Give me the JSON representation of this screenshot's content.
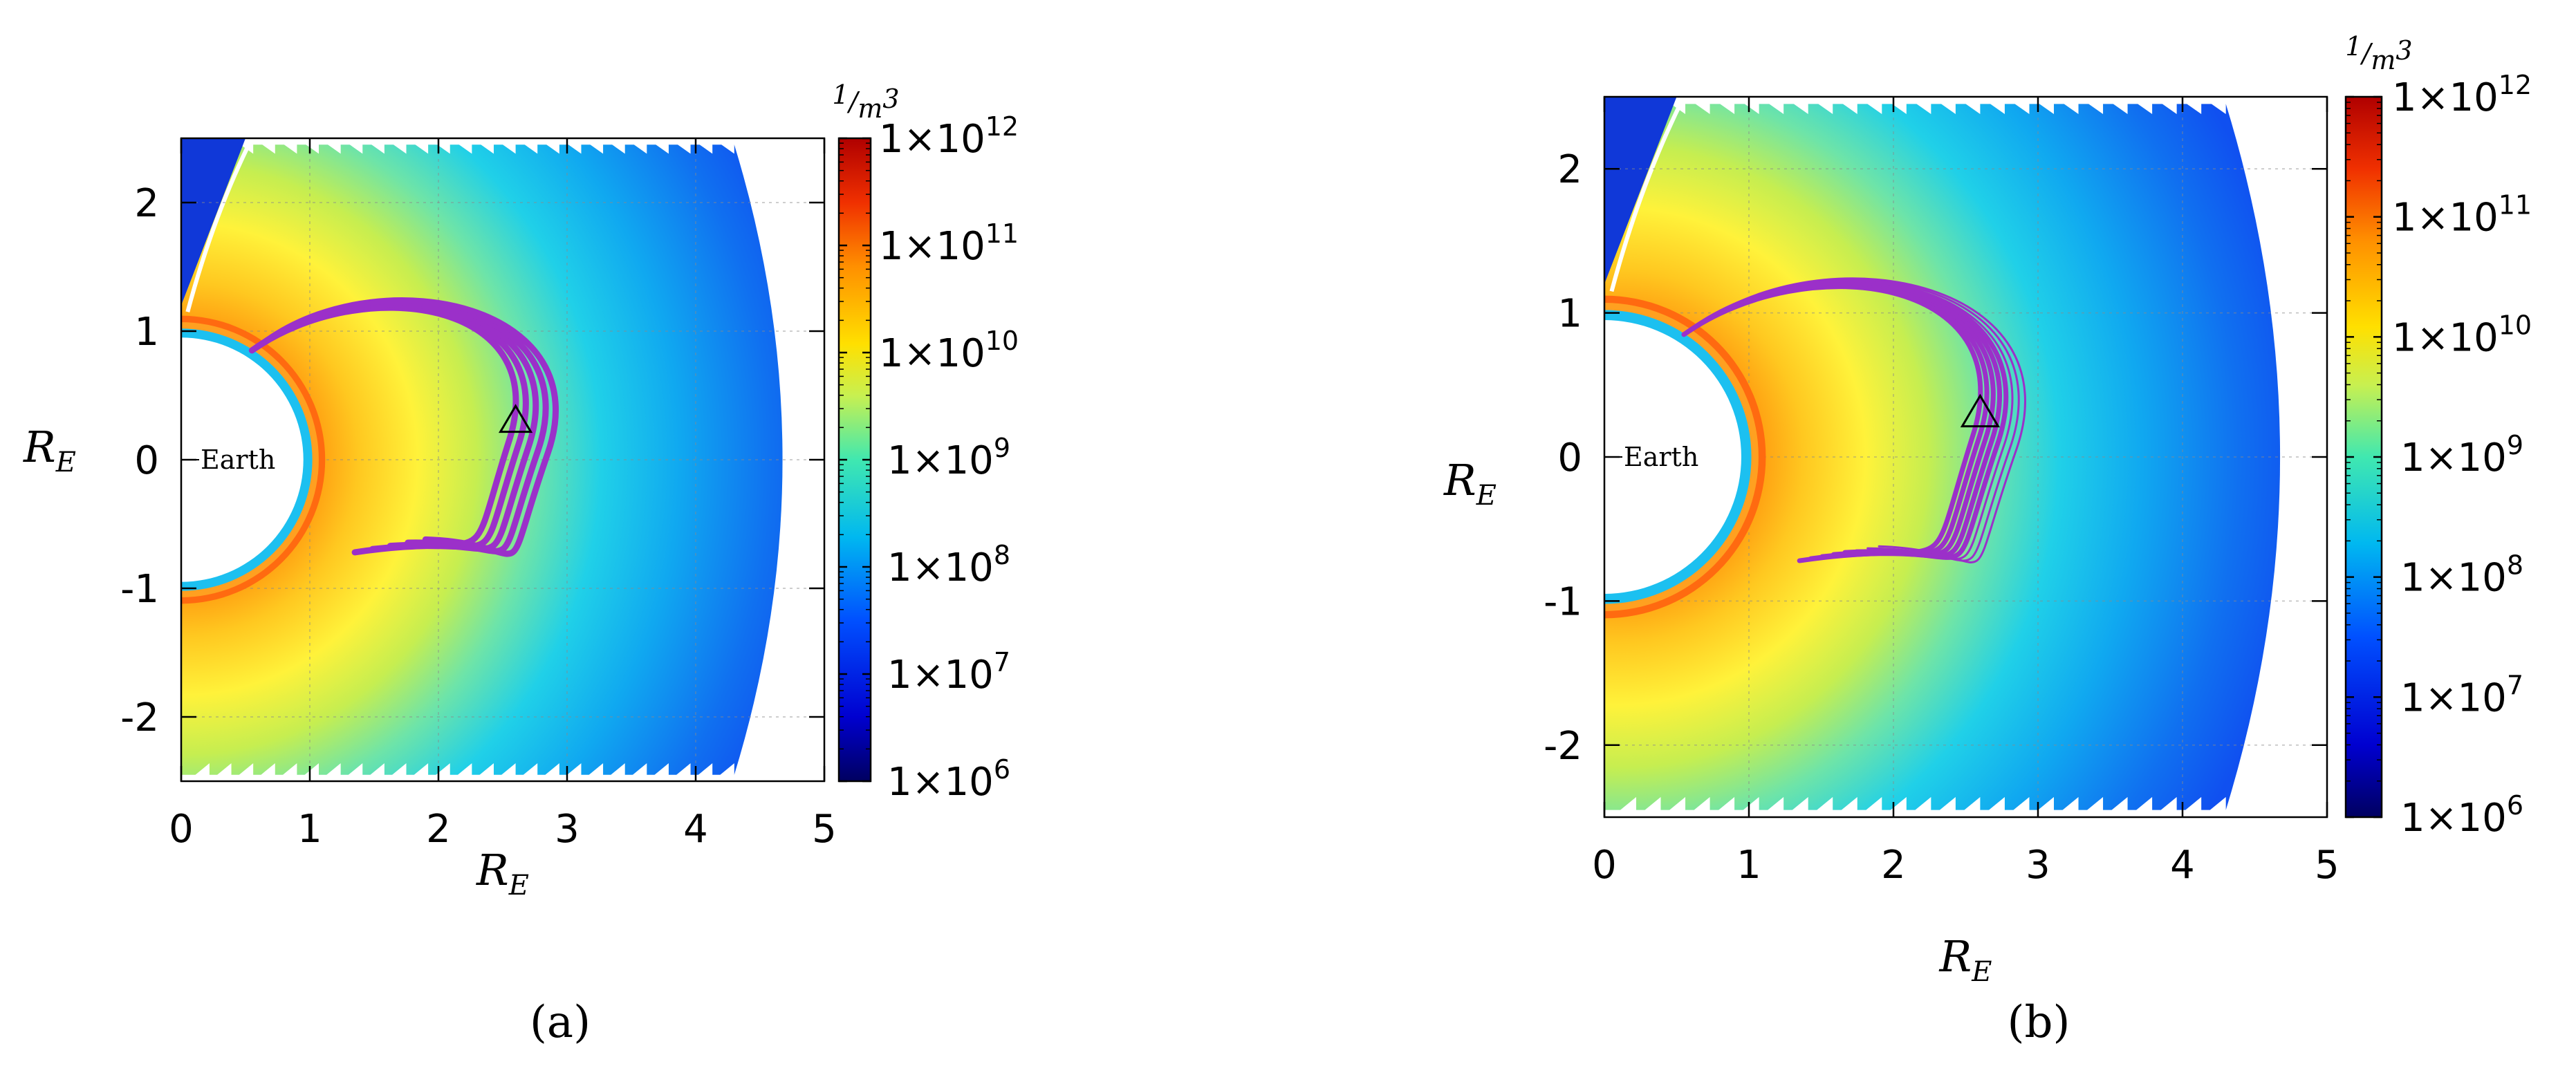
{
  "chart_data": [
    {
      "panel": "(a)",
      "type": "heatmap",
      "xlabel": "R_E",
      "ylabel": "R_E",
      "xlim": [
        0,
        5
      ],
      "ylim": [
        -2.5,
        2.5
      ],
      "x_ticks": [
        "0",
        "1",
        "2",
        "3",
        "4",
        "5"
      ],
      "y_ticks": [
        "2",
        "1",
        "0",
        "-1",
        "-2"
      ],
      "grid": true,
      "annotation": "Earth",
      "colorbar": {
        "unit": "1/m³",
        "scale": "log",
        "range": [
          1000000.0,
          1000000000000.0
        ],
        "tick_labels": [
          "1×10¹²",
          "1×10¹¹",
          "1×10¹⁰",
          "1×10⁹",
          "1×10⁸",
          "1×10⁷",
          "1×10⁶"
        ]
      },
      "marker": {
        "shape": "triangle",
        "x": 2.6,
        "y": 0.3
      },
      "trajectory_color": "#9b30c9",
      "trajectory_count": 5
    },
    {
      "panel": "(b)",
      "type": "heatmap",
      "xlabel": "R_E",
      "ylabel": "R_E",
      "xlim": [
        0,
        5
      ],
      "ylim": [
        -2.5,
        2.5
      ],
      "x_ticks": [
        "0",
        "1",
        "2",
        "3",
        "4",
        "5"
      ],
      "y_ticks": [
        "2",
        "1",
        "0",
        "-1",
        "-2"
      ],
      "grid": true,
      "annotation": "Earth",
      "colorbar": {
        "unit": "1/m³",
        "scale": "log",
        "range": [
          1000000.0,
          1000000000000.0
        ],
        "tick_labels": [
          "1×10¹²",
          "1×10¹¹",
          "1×10¹⁰",
          "1×10⁹",
          "1×10⁸",
          "1×10⁷",
          "1×10⁶"
        ]
      },
      "marker": {
        "shape": "triangle",
        "x": 2.6,
        "y": 0.3
      },
      "trajectory_color": "#9b30c9",
      "trajectory_count": 8
    }
  ],
  "text": {
    "x_ticks": [
      "0",
      "1",
      "2",
      "3",
      "4",
      "5"
    ],
    "y_ticks": [
      "2",
      "1",
      "0",
      "-1",
      "-2"
    ],
    "axis_main": "R",
    "axis_sub": "E",
    "earth": "Earth",
    "unit_num": "1",
    "unit_den": "m",
    "unit_exp": "3",
    "cb_base": "1×10",
    "cb_exps": [
      "12",
      "11",
      "10",
      "9",
      "8",
      "7",
      "6"
    ],
    "caption_a": "(a)",
    "caption_b": "(b)"
  }
}
